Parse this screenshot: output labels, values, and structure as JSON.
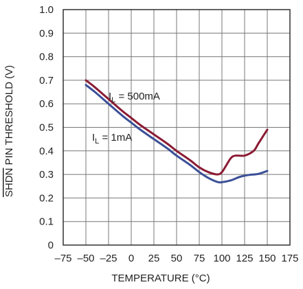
{
  "chart_data": {
    "type": "line",
    "xlabel": "TEMPERATURE (°C)",
    "ylabel_overline": "SHDN",
    "ylabel_rest": " PIN THRESHOLD (V)",
    "xlim": [
      -75,
      175
    ],
    "ylim": [
      0,
      1.0
    ],
    "xticks": [
      -75,
      -50,
      -25,
      0,
      25,
      50,
      75,
      100,
      125,
      150,
      175
    ],
    "yticks": [
      0,
      0.1,
      0.2,
      0.3,
      0.4,
      0.5,
      0.6,
      0.7,
      0.8,
      0.9,
      1.0
    ],
    "xtick_labels": [
      "–75",
      "–50",
      "–25",
      "0",
      "25",
      "50",
      "75",
      "100",
      "125",
      "150",
      "175"
    ],
    "ytick_labels": [
      "0",
      "0.1",
      "0.2",
      "0.3",
      "0.4",
      "0.5",
      "0.6",
      "0.7",
      "0.8",
      "0.9",
      "1.0"
    ],
    "grid": true,
    "series": [
      {
        "name": "500mA",
        "label_main": "I",
        "label_sub": "L",
        "label_rest": " = 500mA",
        "color": "#8b1a33",
        "x": [
          -50,
          -40,
          -25,
          -10,
          0,
          10,
          25,
          40,
          50,
          65,
          75,
          85,
          95,
          100,
          105,
          110,
          115,
          125,
          135,
          140,
          145,
          150
        ],
        "y": [
          0.7,
          0.67,
          0.62,
          0.57,
          0.54,
          0.51,
          0.47,
          0.43,
          0.4,
          0.36,
          0.33,
          0.31,
          0.3,
          0.31,
          0.34,
          0.37,
          0.38,
          0.38,
          0.4,
          0.43,
          0.46,
          0.49
        ]
      },
      {
        "name": "1mA",
        "label_main": "I",
        "label_sub": "L",
        "label_rest": " = 1mA",
        "color": "#3a4f97",
        "x": [
          -50,
          -40,
          -25,
          -10,
          0,
          10,
          25,
          40,
          50,
          65,
          75,
          85,
          95,
          100,
          110,
          120,
          130,
          140,
          150
        ],
        "y": [
          0.68,
          0.65,
          0.6,
          0.55,
          0.52,
          0.49,
          0.45,
          0.41,
          0.38,
          0.34,
          0.31,
          0.285,
          0.268,
          0.267,
          0.275,
          0.29,
          0.298,
          0.302,
          0.315
        ]
      }
    ]
  }
}
